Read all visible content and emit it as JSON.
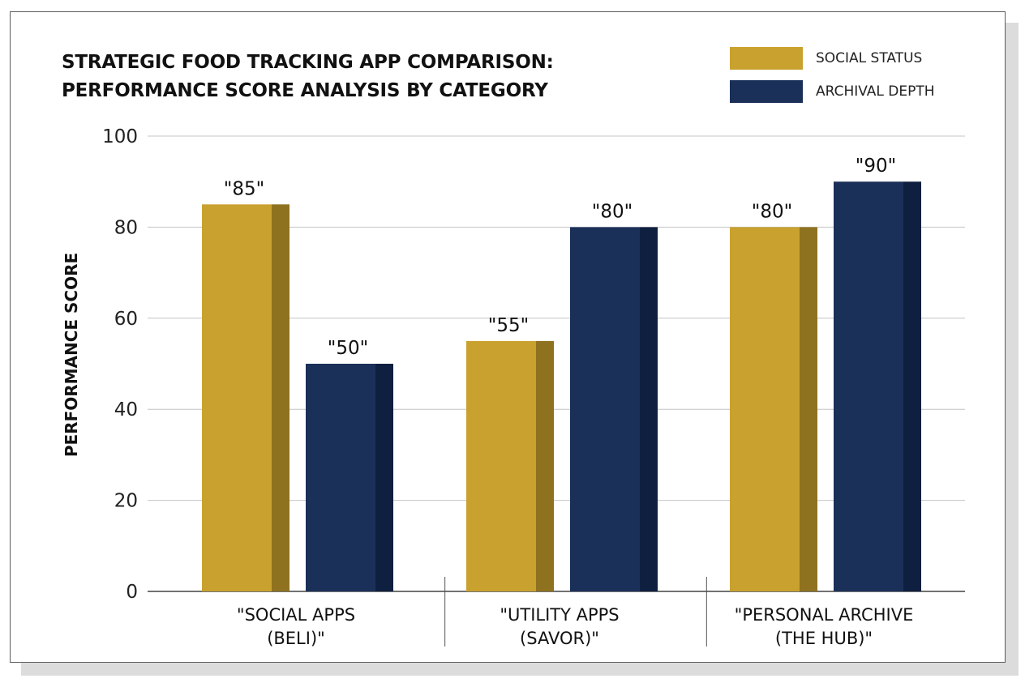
{
  "chart_data": {
    "type": "bar",
    "title_lines": [
      "STRATEGIC FOOD TRACKING APP COMPARISON:",
      "PERFORMANCE SCORE ANALYSIS BY CATEGORY"
    ],
    "xlabel": "",
    "ylabel": "PERFORMANCE SCORE",
    "ylim": [
      0,
      100
    ],
    "yticks": [
      0,
      20,
      40,
      60,
      80,
      100
    ],
    "grid": true,
    "legend_position": "top-right",
    "categories": [
      [
        "\"SOCIAL APPS",
        "(BELI)\""
      ],
      [
        "\"UTILITY APPS",
        "(SAVOR)\""
      ],
      [
        "\"PERSONAL ARCHIVE",
        "(THE HUB)\""
      ]
    ],
    "series": [
      {
        "name": "SOCIAL STATUS",
        "color": "#c9a12e",
        "side_color": "#8f7220",
        "values": [
          85,
          55,
          80
        ],
        "labels": [
          "\"85\"",
          "\"55\"",
          "\"80\""
        ]
      },
      {
        "name": "ARCHIVAL DEPTH",
        "color": "#1b3059",
        "side_color": "#0f1f3f",
        "values": [
          50,
          80,
          90
        ],
        "labels": [
          "\"50\"",
          "\"80\"",
          "\"90\""
        ]
      }
    ]
  }
}
